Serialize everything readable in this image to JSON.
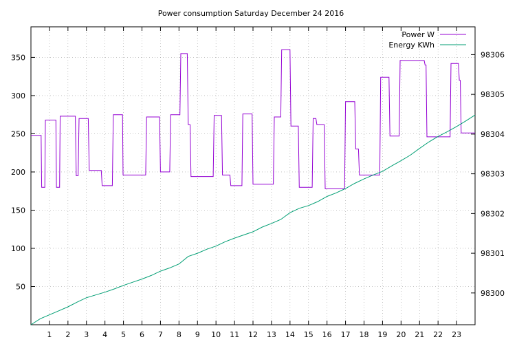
{
  "chart_data": {
    "type": "line",
    "title": "Power consumption Saturday December 24 2016",
    "xlabel": "",
    "ylabel": "",
    "y2label": "",
    "xlim": [
      0,
      24
    ],
    "ylim": [
      0,
      390
    ],
    "y2lim": [
      98299.2,
      98306.7
    ],
    "x_ticks": [
      1,
      2,
      3,
      4,
      5,
      6,
      7,
      8,
      9,
      10,
      11,
      12,
      13,
      14,
      15,
      16,
      17,
      18,
      19,
      20,
      21,
      22,
      23
    ],
    "y_ticks": [
      50,
      100,
      150,
      200,
      250,
      300,
      350
    ],
    "y2_ticks": [
      98300,
      98301,
      98302,
      98303,
      98304,
      98305,
      98306
    ],
    "grid": true,
    "legend_position": "top-right",
    "series": [
      {
        "name": "Power W",
        "axis": "y",
        "color": "#9400d3",
        "x": [
          0,
          0.55,
          0.58,
          0.75,
          0.78,
          1.35,
          1.38,
          1.55,
          1.58,
          2.4,
          2.45,
          2.55,
          2.6,
          3.1,
          3.15,
          3.8,
          3.85,
          4.4,
          4.45,
          4.95,
          4.98,
          6.2,
          6.25,
          6.95,
          7.0,
          7.5,
          7.55,
          8.05,
          8.1,
          8.45,
          8.5,
          8.6,
          8.65,
          9.85,
          9.9,
          10.3,
          10.35,
          10.75,
          10.8,
          11.4,
          11.45,
          11.95,
          12.0,
          13.1,
          13.15,
          13.5,
          13.55,
          14.0,
          14.05,
          14.45,
          14.5,
          15.2,
          15.25,
          15.4,
          15.45,
          15.85,
          15.9,
          16.95,
          17.0,
          17.5,
          17.55,
          17.7,
          17.75,
          18.85,
          18.9,
          19.35,
          19.4,
          19.9,
          19.95,
          21.25,
          21.3,
          21.35,
          21.4,
          22.65,
          22.7,
          23.1,
          23.15,
          23.2,
          23.25,
          24
        ],
        "values": [
          248,
          248,
          180,
          180,
          268,
          268,
          180,
          180,
          273,
          273,
          195,
          195,
          270,
          270,
          202,
          202,
          182,
          182,
          275,
          275,
          196,
          196,
          272,
          272,
          200,
          200,
          275,
          275,
          355,
          355,
          262,
          262,
          194,
          194,
          274,
          274,
          196,
          196,
          182,
          182,
          276,
          276,
          184,
          184,
          272,
          272,
          360,
          360,
          260,
          260,
          180,
          180,
          270,
          270,
          262,
          262,
          178,
          178,
          292,
          292,
          230,
          230,
          196,
          196,
          324,
          324,
          247,
          247,
          346,
          346,
          340,
          340,
          246,
          246,
          342,
          342,
          320,
          320,
          251,
          251
        ]
      },
      {
        "name": "Energy KWh",
        "axis": "y2",
        "color": "#009e73",
        "x": [
          0,
          0.5,
          1,
          1.5,
          2,
          2.5,
          3,
          3.5,
          4,
          4.5,
          5,
          5.5,
          6,
          6.5,
          7,
          7.5,
          8,
          8.5,
          9,
          9.5,
          10,
          10.5,
          11,
          11.5,
          12,
          12.5,
          13,
          13.5,
          14,
          14.5,
          15,
          15.5,
          16,
          16.5,
          17,
          17.5,
          18,
          18.5,
          19,
          19.5,
          20,
          20.5,
          21,
          21.5,
          22,
          22.5,
          23,
          23.5,
          24
        ],
        "values": [
          98299.2,
          98299.35,
          98299.45,
          98299.55,
          98299.65,
          98299.77,
          98299.88,
          98299.95,
          98300.02,
          98300.1,
          98300.19,
          98300.27,
          98300.35,
          98300.44,
          98300.55,
          98300.63,
          98300.73,
          98300.92,
          98301.0,
          98301.1,
          98301.18,
          98301.29,
          98301.38,
          98301.46,
          98301.54,
          98301.66,
          98301.75,
          98301.85,
          98302.02,
          98302.13,
          98302.2,
          98302.3,
          98302.43,
          98302.52,
          98302.63,
          98302.76,
          98302.87,
          98302.97,
          98303.06,
          98303.2,
          98303.33,
          98303.47,
          98303.64,
          98303.8,
          98303.94,
          98304.06,
          98304.19,
          98304.33,
          98304.48
        ]
      }
    ]
  }
}
